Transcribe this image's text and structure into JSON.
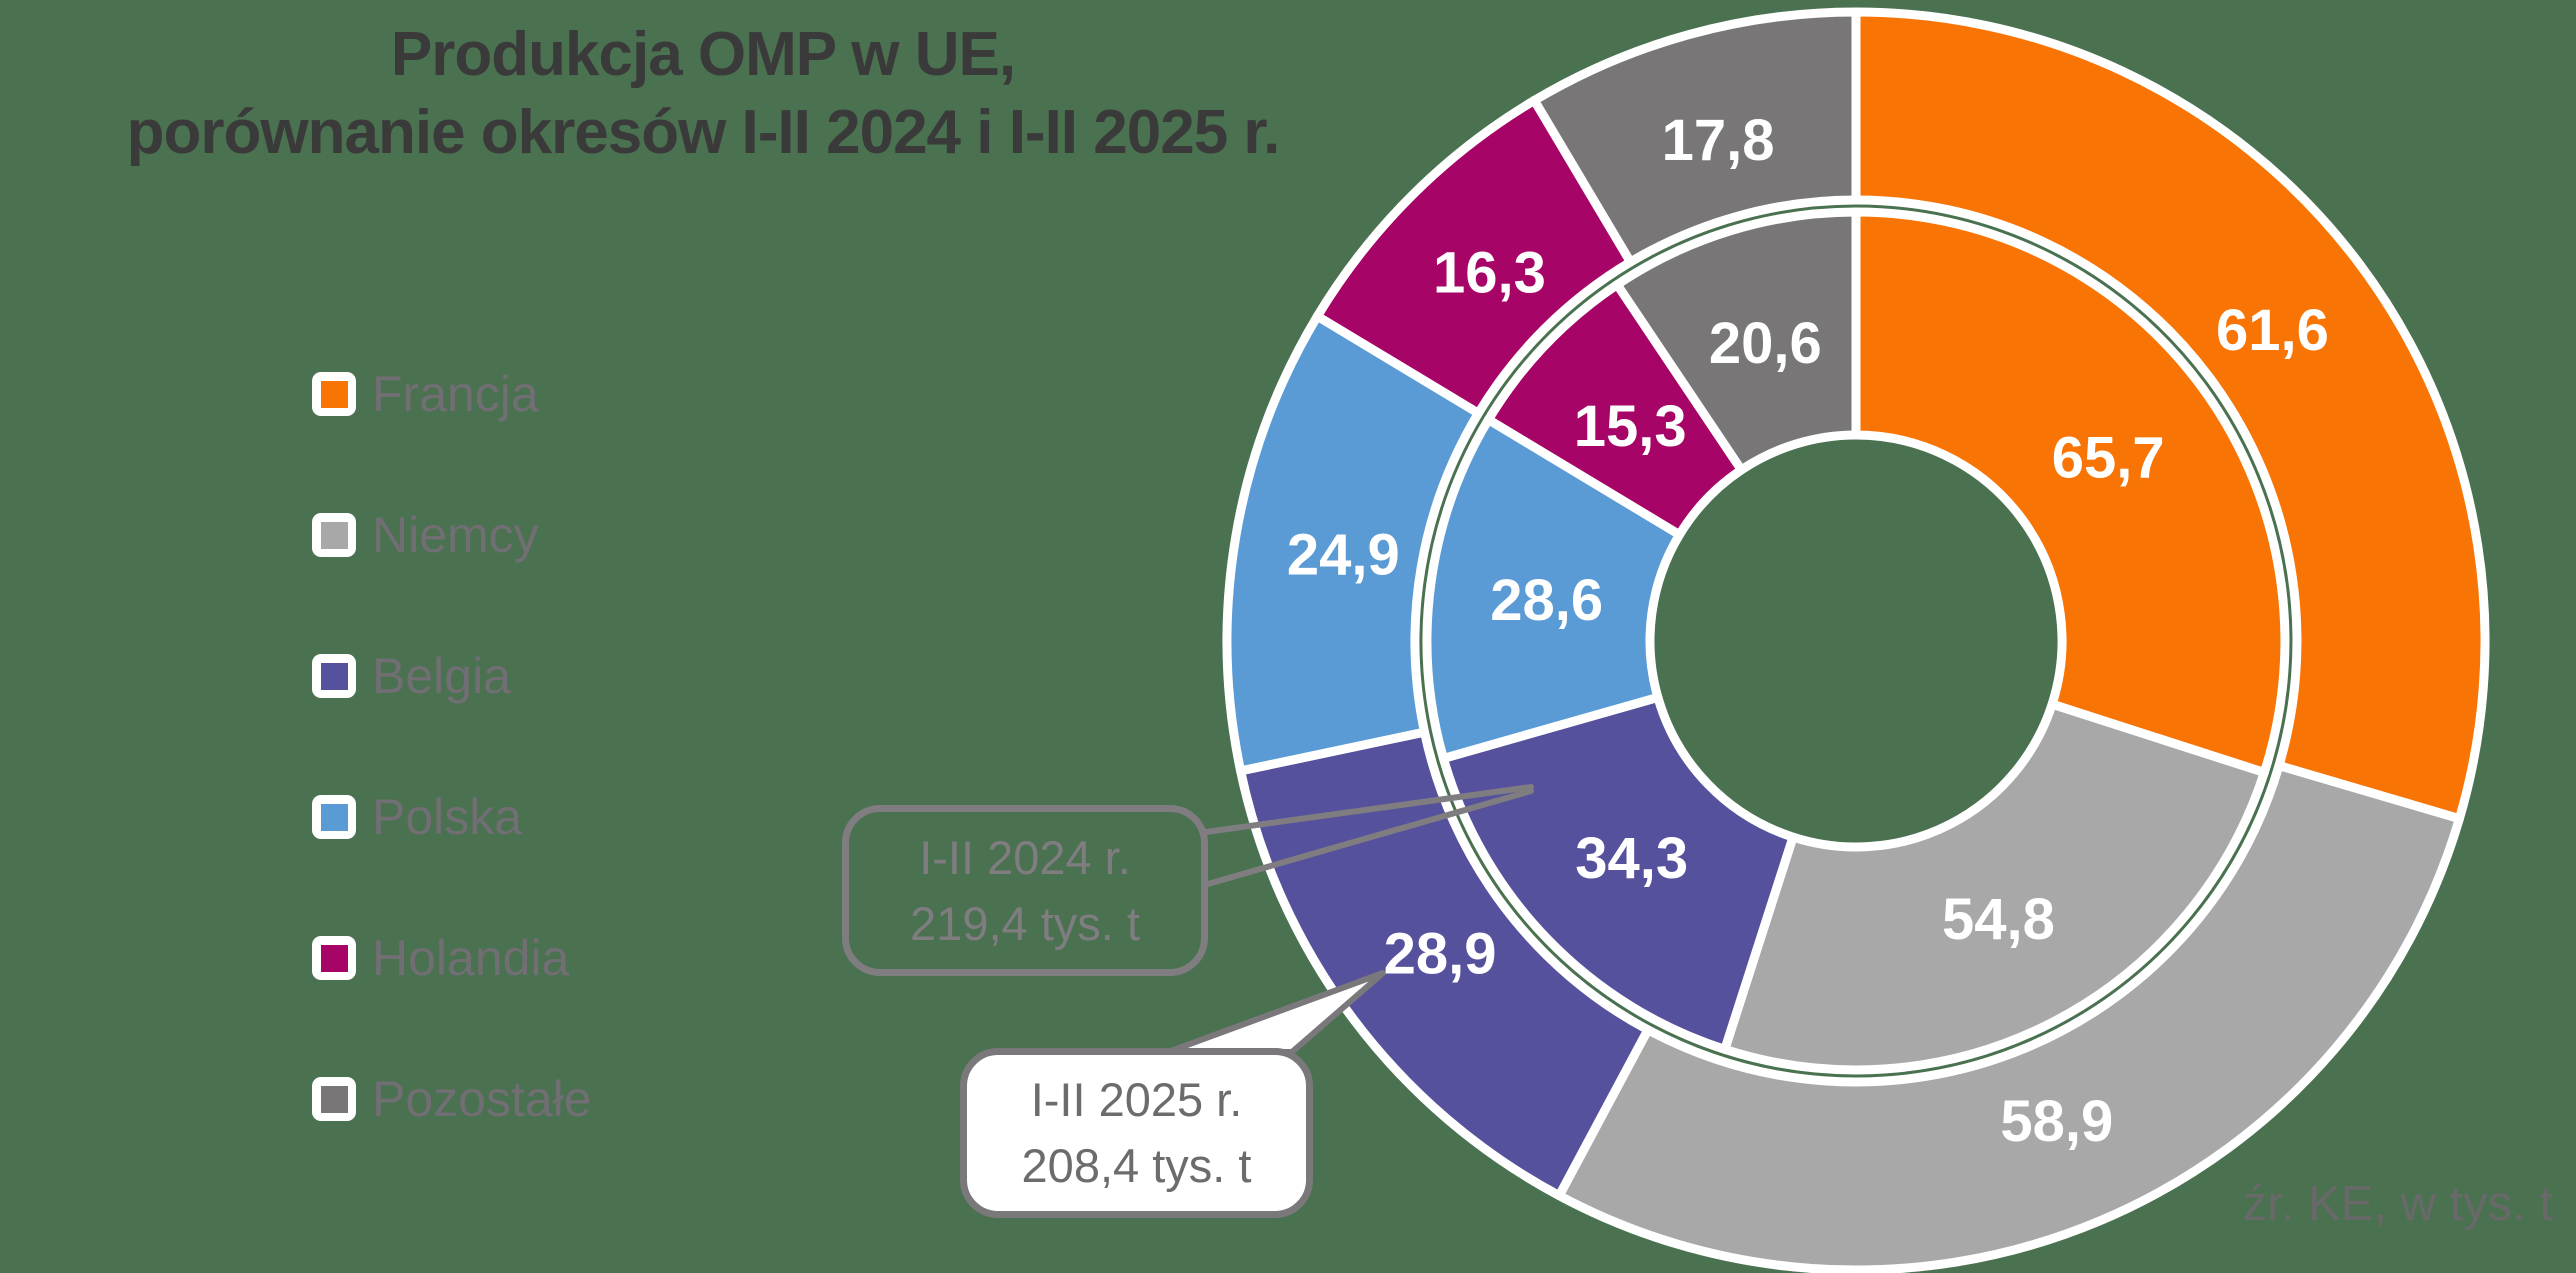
{
  "title": {
    "line1": "Produkcja OMP w UE,",
    "line2": "porównanie okresów I-II 2024 i I-II 2025 r."
  },
  "legend": {
    "items": [
      {
        "label": "Francja",
        "color": "#F87405"
      },
      {
        "label": "Niemcy",
        "color": "#A9A8A8"
      },
      {
        "label": "Belgia",
        "color": "#56519C"
      },
      {
        "label": "Polska",
        "color": "#5B9BD5"
      },
      {
        "label": "Holandia",
        "color": "#A60567"
      },
      {
        "label": "Pozostałe",
        "color": "#787677"
      }
    ]
  },
  "callouts": {
    "inner": {
      "line1": "I-II 2024 r.",
      "line2": "219,4 tys. t"
    },
    "outer": {
      "line1": "I-II 2025 r.",
      "line2": "208,4 tys. t"
    }
  },
  "source_note": "źr. KE, w tys. t",
  "chart_data": {
    "type": "pie",
    "variant": "nested-donut",
    "title": "Produkcja OMP w UE, porównanie okresów I-II 2024 i I-II 2025 r.",
    "unit": "tys. t",
    "start_angle_deg": 0,
    "direction": "clockwise",
    "categories": [
      "Francja",
      "Niemcy",
      "Belgia",
      "Polska",
      "Holandia",
      "Pozostałe"
    ],
    "colors": [
      "#F87405",
      "#A9A8A8",
      "#56519C",
      "#5B9BD5",
      "#A60567",
      "#787677"
    ],
    "label_color": "#FFFFFF",
    "separator_color": "#FFFFFF",
    "series": [
      {
        "name": "I-II 2024 r.",
        "ring": "inner",
        "total": 219.4,
        "total_label": "219,4 tys. t",
        "values": [
          65.7,
          54.8,
          34.3,
          28.6,
          15.3,
          20.6
        ],
        "labels": [
          "65,7",
          "54,8",
          "34,3",
          "28,6",
          "15,3",
          "20,6"
        ]
      },
      {
        "name": "I-II 2025 r.",
        "ring": "outer",
        "total": 208.4,
        "total_label": "208,4 tys. t",
        "values": [
          61.6,
          58.9,
          28.9,
          24.9,
          16.3,
          17.8
        ],
        "labels": [
          "61,6",
          "58,9",
          "28,9",
          "24,9",
          "16,3",
          "17,8"
        ]
      }
    ]
  }
}
